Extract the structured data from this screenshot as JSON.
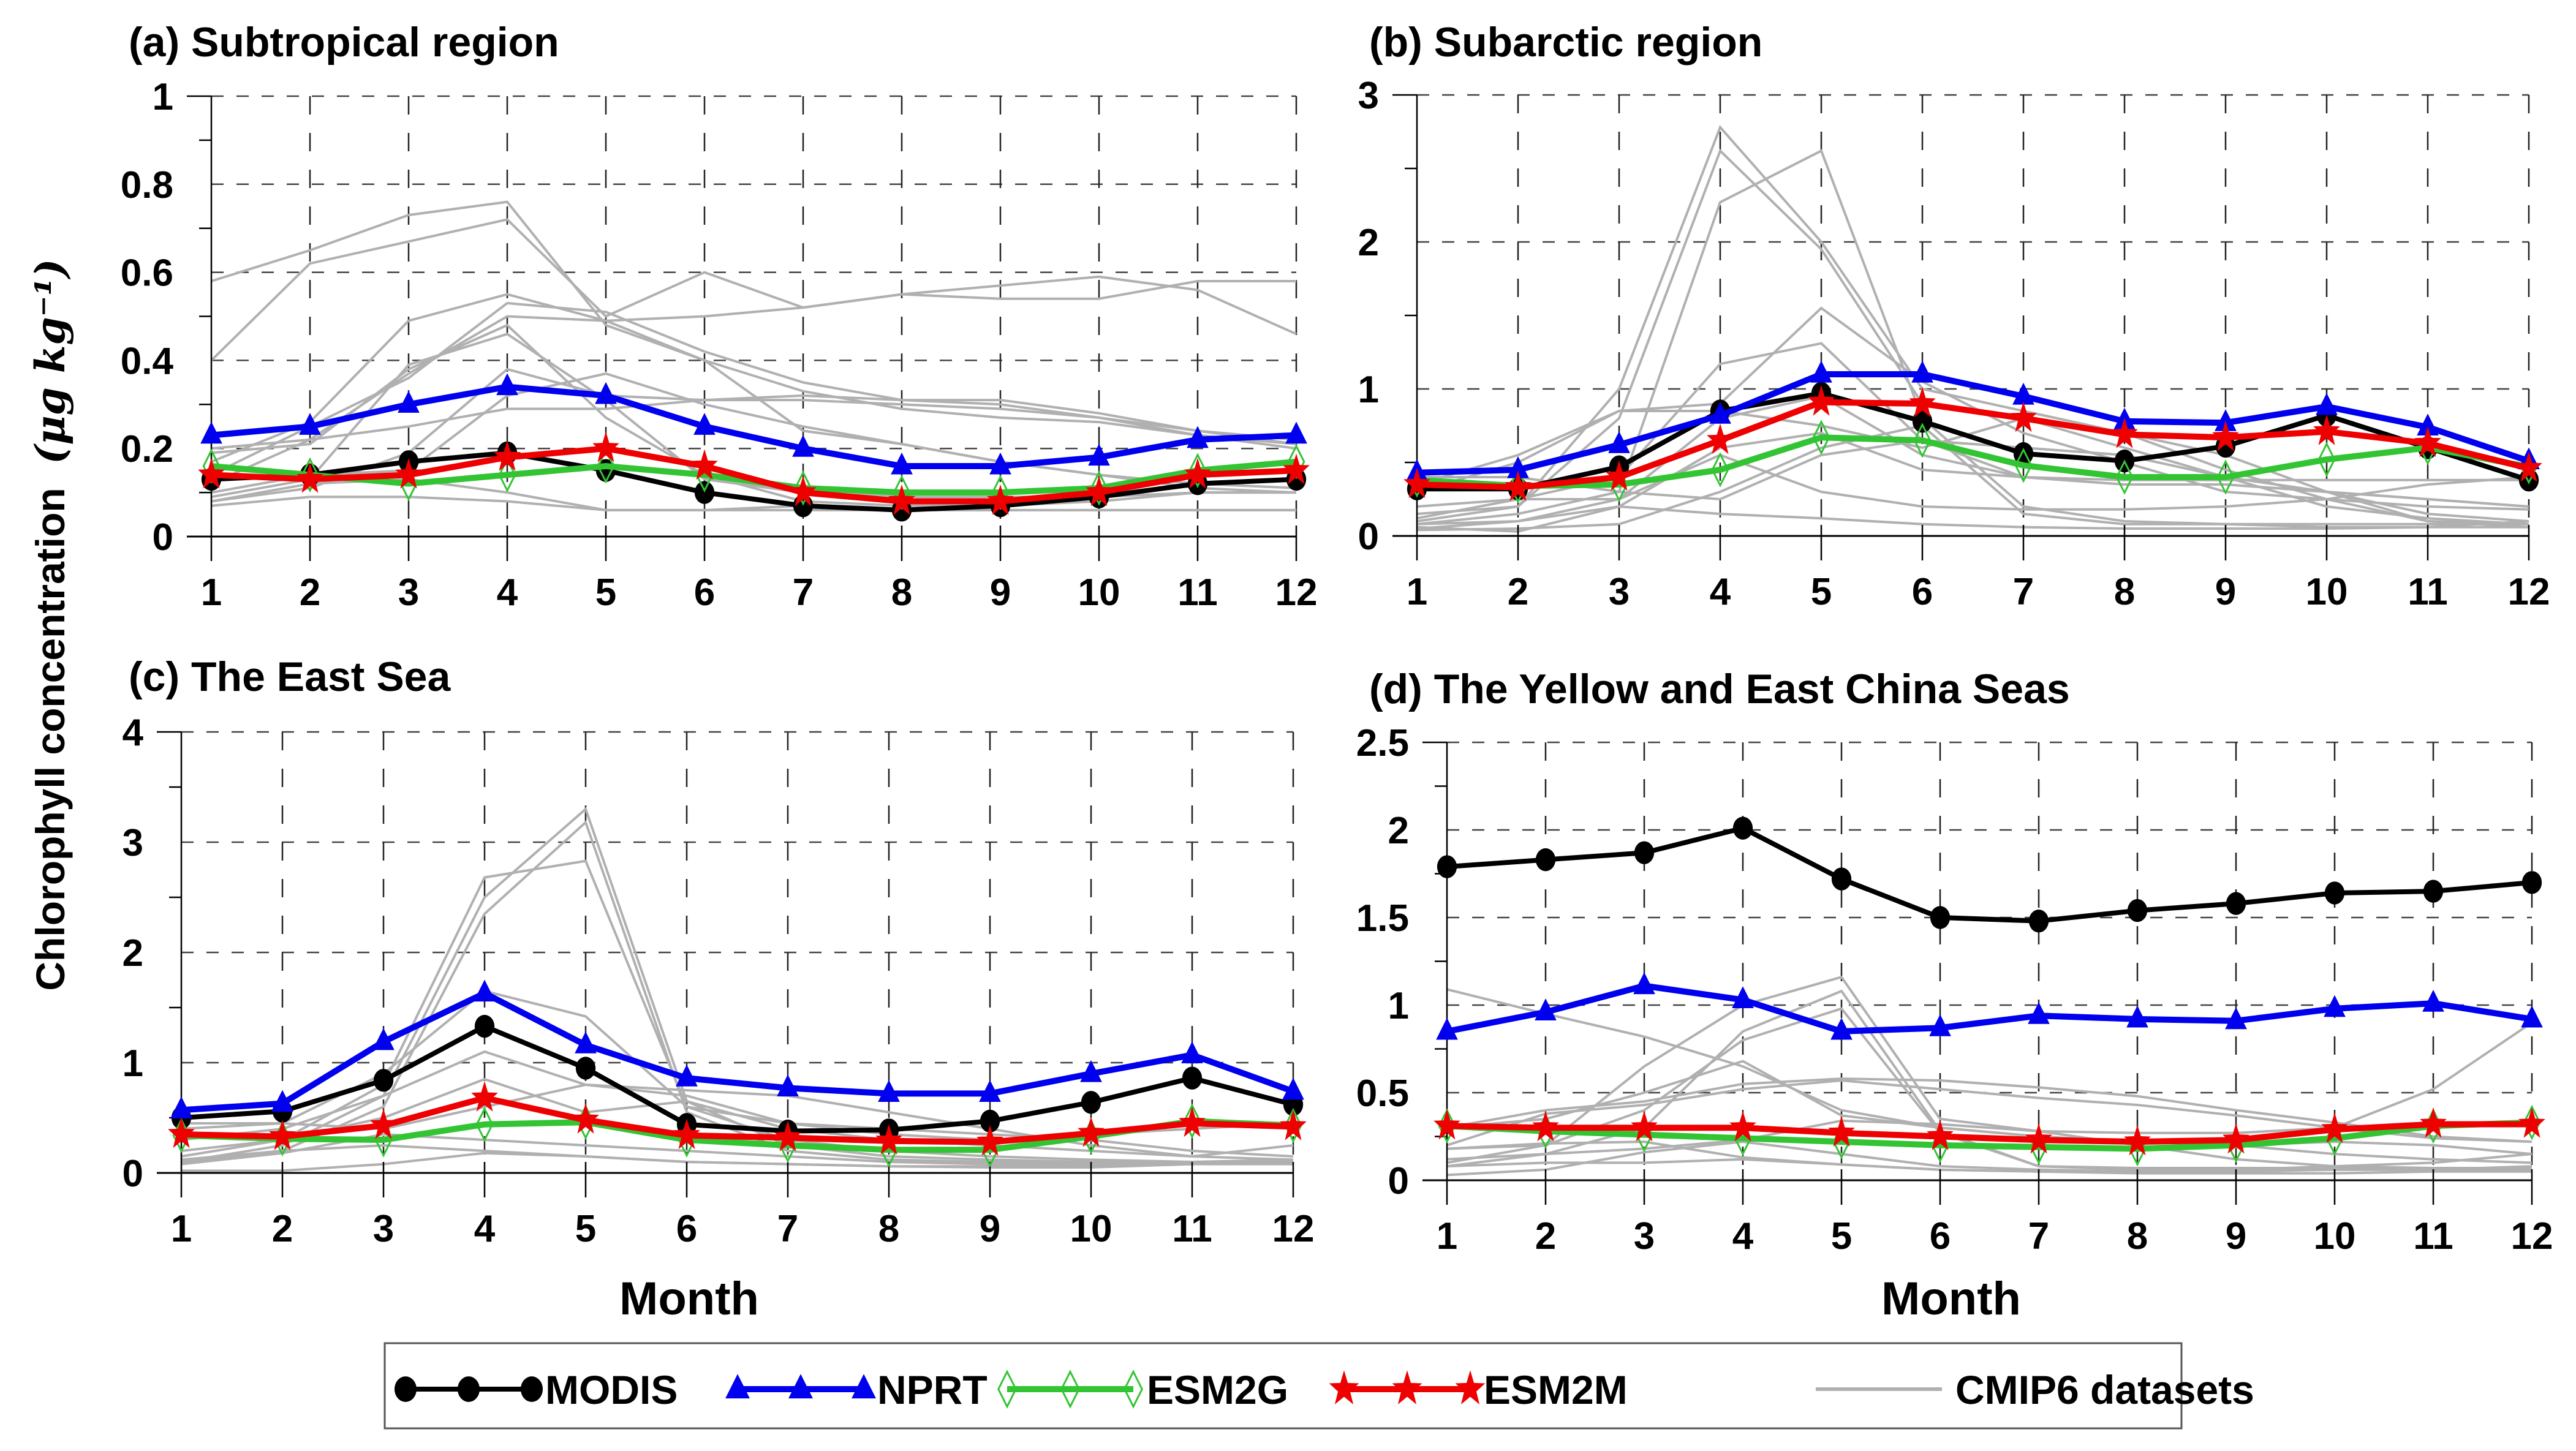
{
  "figure": {
    "ylabel": "Chlorophyll concentration",
    "ylabel_units": "(μg kg⁻¹)",
    "xlabel": "Month"
  },
  "legend": {
    "placement": "bottom-center",
    "items": [
      {
        "name": "MODIS",
        "color": "#000000",
        "marker": "circle"
      },
      {
        "name": "NPRT",
        "color": "#0000ee",
        "marker": "triangle"
      },
      {
        "name": "ESM2G",
        "color": "#33c433",
        "marker": "diamond-open"
      },
      {
        "name": "ESM2M",
        "color": "#ee0000",
        "marker": "star"
      },
      {
        "name": "CMIP6 datasets",
        "color": "#b0b0b0",
        "marker": "none"
      }
    ]
  },
  "chart_data": [
    {
      "type": "line",
      "title": "(a) Subtropical region",
      "xlabel": "",
      "ylabel": "Chlorophyll concentration (μg kg⁻¹)",
      "x": [
        1,
        2,
        3,
        4,
        5,
        6,
        7,
        8,
        9,
        10,
        11,
        12
      ],
      "ylim": [
        0,
        1
      ],
      "yticks": [
        0,
        0.2,
        0.4,
        0.6,
        0.8,
        1
      ],
      "ytick_labels": [
        "0",
        "0.2",
        "0.4",
        "0.6",
        "0.8",
        "1"
      ],
      "grid": true,
      "series": [
        {
          "name": "MODIS",
          "values": [
            0.13,
            0.14,
            0.17,
            0.19,
            0.15,
            0.1,
            0.07,
            0.06,
            0.07,
            0.09,
            0.12,
            0.13
          ]
        },
        {
          "name": "NPRT",
          "values": [
            0.23,
            0.25,
            0.3,
            0.34,
            0.32,
            0.25,
            0.2,
            0.16,
            0.16,
            0.18,
            0.22,
            0.23
          ]
        },
        {
          "name": "ESM2G",
          "values": [
            0.16,
            0.14,
            0.12,
            0.14,
            0.16,
            0.14,
            0.11,
            0.1,
            0.1,
            0.11,
            0.15,
            0.17
          ]
        },
        {
          "name": "ESM2M",
          "values": [
            0.14,
            0.13,
            0.14,
            0.18,
            0.2,
            0.16,
            0.1,
            0.08,
            0.08,
            0.1,
            0.14,
            0.15
          ]
        }
      ],
      "cmip6": [
        [
          0.58,
          0.65,
          0.73,
          0.76,
          0.48,
          0.4,
          0.33,
          0.29,
          0.27,
          0.26,
          0.23,
          0.2
        ],
        [
          0.4,
          0.62,
          0.67,
          0.72,
          0.5,
          0.6,
          0.52,
          0.55,
          0.57,
          0.59,
          0.56,
          0.46
        ],
        [
          0.17,
          0.26,
          0.49,
          0.55,
          0.49,
          0.5,
          0.52,
          0.55,
          0.54,
          0.54,
          0.58,
          0.58
        ],
        [
          0.14,
          0.25,
          0.36,
          0.53,
          0.51,
          0.42,
          0.35,
          0.31,
          0.31,
          0.28,
          0.24,
          0.22
        ],
        [
          0.12,
          0.22,
          0.37,
          0.5,
          0.49,
          0.4,
          0.24,
          0.21,
          0.17,
          0.14,
          0.12,
          0.11
        ],
        [
          0.19,
          0.21,
          0.38,
          0.48,
          0.27,
          0.14,
          0.08,
          0.07,
          0.07,
          0.08,
          0.1,
          0.1
        ],
        [
          0.09,
          0.13,
          0.39,
          0.46,
          0.31,
          0.13,
          0.1,
          0.09,
          0.09,
          0.09,
          0.1,
          0.1
        ],
        [
          0.2,
          0.22,
          0.25,
          0.29,
          0.29,
          0.31,
          0.31,
          0.3,
          0.29,
          0.27,
          0.24,
          0.21
        ],
        [
          0.08,
          0.11,
          0.19,
          0.38,
          0.32,
          0.31,
          0.32,
          0.31,
          0.3,
          0.27,
          0.23,
          0.21
        ],
        [
          0.1,
          0.14,
          0.15,
          0.32,
          0.37,
          0.3,
          0.25,
          0.21,
          0.17,
          0.14,
          0.11,
          0.1
        ],
        [
          0.08,
          0.12,
          0.13,
          0.1,
          0.06,
          0.06,
          0.07,
          0.06,
          0.06,
          0.06,
          0.06,
          0.06
        ],
        [
          0.07,
          0.09,
          0.09,
          0.08,
          0.06,
          0.06,
          0.06,
          0.06,
          0.06,
          0.06,
          0.06,
          0.06
        ]
      ]
    },
    {
      "type": "line",
      "title": "(b) Subarctic region",
      "xlabel": "",
      "ylabel": "",
      "x": [
        1,
        2,
        3,
        4,
        5,
        6,
        7,
        8,
        9,
        10,
        11,
        12
      ],
      "ylim": [
        0,
        3
      ],
      "yticks": [
        0,
        1,
        2,
        3
      ],
      "ytick_labels": [
        "0",
        "1",
        "2",
        "3"
      ],
      "grid": true,
      "series": [
        {
          "name": "MODIS",
          "values": [
            0.32,
            0.32,
            0.47,
            0.85,
            0.97,
            0.78,
            0.56,
            0.51,
            0.61,
            0.82,
            0.6,
            0.38
          ]
        },
        {
          "name": "NPRT",
          "values": [
            0.43,
            0.45,
            0.62,
            0.82,
            1.1,
            1.1,
            0.95,
            0.78,
            0.77,
            0.88,
            0.74,
            0.51
          ]
        },
        {
          "name": "ESM2G",
          "values": [
            0.38,
            0.34,
            0.35,
            0.45,
            0.67,
            0.65,
            0.48,
            0.4,
            0.4,
            0.52,
            0.6,
            0.47
          ]
        },
        {
          "name": "ESM2M",
          "values": [
            0.35,
            0.33,
            0.4,
            0.65,
            0.91,
            0.9,
            0.8,
            0.69,
            0.67,
            0.71,
            0.63,
            0.46
          ]
        }
      ],
      "cmip6": [
        [
          0.1,
          0.2,
          1.0,
          2.78,
          2.0,
          1.0,
          0.85,
          0.7,
          0.45,
          0.25,
          0.1,
          0.08
        ],
        [
          0.15,
          0.2,
          0.8,
          2.62,
          1.95,
          0.9,
          0.8,
          0.6,
          0.4,
          0.2,
          0.12,
          0.08
        ],
        [
          0.08,
          0.15,
          0.3,
          2.27,
          2.62,
          0.8,
          0.2,
          0.1,
          0.08,
          0.06,
          0.06,
          0.06
        ],
        [
          0.3,
          0.5,
          0.85,
          0.9,
          1.55,
          1.05,
          0.7,
          0.5,
          0.3,
          0.25,
          0.2,
          0.18
        ],
        [
          0.2,
          0.25,
          0.4,
          1.17,
          1.31,
          0.65,
          0.6,
          0.55,
          0.4,
          0.3,
          0.25,
          0.2
        ],
        [
          0.35,
          0.55,
          0.85,
          0.85,
          0.75,
          0.6,
          0.8,
          0.7,
          0.55,
          0.3,
          0.15,
          0.1
        ],
        [
          0.4,
          0.4,
          0.3,
          0.25,
          0.55,
          0.65,
          0.4,
          0.38,
          0.38,
          0.38,
          0.38,
          0.38
        ],
        [
          0.05,
          0.1,
          0.2,
          0.6,
          0.7,
          0.45,
          0.4,
          0.35,
          0.35,
          0.3,
          0.25,
          0.2
        ],
        [
          0.12,
          0.25,
          0.25,
          0.55,
          0.3,
          0.2,
          0.18,
          0.18,
          0.2,
          0.25,
          0.35,
          0.4
        ],
        [
          0.04,
          0.05,
          0.08,
          0.3,
          0.6,
          0.75,
          0.15,
          0.08,
          0.08,
          0.08,
          0.08,
          0.08
        ],
        [
          0.06,
          0.03,
          0.2,
          0.15,
          0.12,
          0.08,
          0.06,
          0.05,
          0.05,
          0.05,
          0.06,
          0.1
        ],
        [
          0.08,
          0.1,
          0.25,
          0.8,
          0.95,
          0.55,
          0.4,
          0.35,
          0.35,
          0.3,
          0.1,
          0.06
        ]
      ]
    },
    {
      "type": "line",
      "title": "(c) The East Sea",
      "xlabel": "Month",
      "ylabel": "",
      "x": [
        1,
        2,
        3,
        4,
        5,
        6,
        7,
        8,
        9,
        10,
        11,
        12
      ],
      "ylim": [
        0,
        4
      ],
      "yticks": [
        0,
        1,
        2,
        3,
        4
      ],
      "ytick_labels": [
        "0",
        "1",
        "2",
        "3",
        "4"
      ],
      "grid": true,
      "series": [
        {
          "name": "MODIS",
          "values": [
            0.5,
            0.56,
            0.84,
            1.33,
            0.95,
            0.44,
            0.38,
            0.39,
            0.47,
            0.64,
            0.86,
            0.62
          ]
        },
        {
          "name": "NPRT",
          "values": [
            0.57,
            0.63,
            1.19,
            1.63,
            1.16,
            0.86,
            0.77,
            0.72,
            0.72,
            0.9,
            1.07,
            0.74
          ]
        },
        {
          "name": "ESM2G",
          "values": [
            0.34,
            0.31,
            0.3,
            0.44,
            0.46,
            0.3,
            0.25,
            0.21,
            0.21,
            0.33,
            0.47,
            0.43
          ]
        },
        {
          "name": "ESM2M",
          "values": [
            0.35,
            0.33,
            0.43,
            0.68,
            0.48,
            0.34,
            0.32,
            0.29,
            0.28,
            0.36,
            0.45,
            0.42
          ]
        }
      ],
      "cmip6": [
        [
          0.15,
          0.3,
          0.8,
          2.68,
          2.83,
          0.6,
          0.3,
          0.2,
          0.15,
          0.12,
          0.1,
          0.1
        ],
        [
          0.1,
          0.25,
          0.7,
          2.5,
          3.3,
          0.65,
          0.25,
          0.15,
          0.12,
          0.1,
          0.1,
          0.1
        ],
        [
          0.12,
          0.2,
          0.6,
          2.35,
          3.18,
          0.55,
          0.2,
          0.12,
          0.1,
          0.08,
          0.08,
          0.08
        ],
        [
          0.4,
          0.45,
          0.9,
          1.65,
          1.42,
          0.6,
          0.45,
          0.4,
          0.35,
          0.3,
          0.2,
          0.15
        ],
        [
          0.3,
          0.4,
          0.7,
          1.1,
          0.8,
          0.75,
          0.7,
          0.55,
          0.4,
          0.25,
          0.15,
          0.12
        ],
        [
          0.2,
          0.3,
          0.5,
          0.85,
          0.55,
          0.65,
          0.4,
          0.3,
          0.25,
          0.2,
          0.15,
          0.25
        ],
        [
          0.45,
          0.45,
          0.4,
          0.6,
          0.8,
          0.7,
          0.45,
          0.35,
          0.3,
          0.35,
          0.4,
          0.45
        ],
        [
          0.08,
          0.18,
          0.35,
          0.3,
          0.25,
          0.2,
          0.15,
          0.1,
          0.08,
          0.08,
          0.1,
          0.12
        ],
        [
          0.02,
          0.02,
          0.08,
          0.18,
          0.15,
          0.1,
          0.08,
          0.06,
          0.05,
          0.05,
          0.08,
          0.1
        ],
        [
          0.1,
          0.2,
          0.25,
          0.2,
          0.15,
          0.1,
          0.08,
          0.06,
          0.06,
          0.06,
          0.08,
          0.1
        ]
      ]
    },
    {
      "type": "line",
      "title": "(d) The Yellow and East China Seas",
      "xlabel": "Month",
      "ylabel": "",
      "x": [
        1,
        2,
        3,
        4,
        5,
        6,
        7,
        8,
        9,
        10,
        11,
        12
      ],
      "ylim": [
        0,
        2.5
      ],
      "yticks": [
        0,
        0.5,
        1,
        1.5,
        2,
        2.5
      ],
      "ytick_labels": [
        "0",
        "0.5",
        "1",
        "1.5",
        "2",
        "2.5"
      ],
      "grid": true,
      "series": [
        {
          "name": "MODIS",
          "values": [
            1.79,
            1.83,
            1.87,
            2.01,
            1.72,
            1.5,
            1.48,
            1.54,
            1.58,
            1.64,
            1.65,
            1.7
          ]
        },
        {
          "name": "NPRT",
          "values": [
            0.85,
            0.96,
            1.11,
            1.03,
            0.85,
            0.87,
            0.94,
            0.92,
            0.91,
            0.98,
            1.01,
            0.92
          ]
        },
        {
          "name": "ESM2G",
          "values": [
            0.31,
            0.28,
            0.26,
            0.24,
            0.22,
            0.2,
            0.19,
            0.18,
            0.2,
            0.24,
            0.31,
            0.33
          ]
        },
        {
          "name": "ESM2M",
          "values": [
            0.31,
            0.3,
            0.3,
            0.3,
            0.27,
            0.25,
            0.23,
            0.22,
            0.23,
            0.29,
            0.32,
            0.32
          ]
        }
      ],
      "cmip6": [
        [
          1.09,
          0.95,
          0.82,
          0.65,
          0.4,
          0.3,
          0.25,
          0.22,
          0.2,
          0.15,
          0.12,
          0.1
        ],
        [
          0.3,
          0.4,
          0.45,
          0.55,
          0.58,
          0.57,
          0.53,
          0.48,
          0.4,
          0.33,
          0.25,
          0.22
        ],
        [
          0.2,
          0.38,
          0.43,
          0.52,
          0.57,
          0.52,
          0.47,
          0.43,
          0.37,
          0.3,
          0.24,
          0.22
        ],
        [
          0.1,
          0.2,
          0.65,
          1.0,
          1.16,
          0.35,
          0.28,
          0.27,
          0.27,
          0.3,
          0.52,
          0.9
        ],
        [
          0.12,
          0.15,
          0.3,
          0.85,
          1.08,
          0.28,
          0.08,
          0.07,
          0.07,
          0.07,
          0.07,
          0.07
        ],
        [
          0.18,
          0.2,
          0.4,
          0.8,
          0.98,
          0.27,
          0.08,
          0.06,
          0.06,
          0.06,
          0.06,
          0.06
        ],
        [
          0.3,
          0.35,
          0.5,
          0.68,
          0.37,
          0.3,
          0.25,
          0.22,
          0.2,
          0.22,
          0.2,
          0.15
        ],
        [
          0.08,
          0.15,
          0.18,
          0.23,
          0.34,
          0.32,
          0.28,
          0.2,
          0.12,
          0.08,
          0.1,
          0.15
        ],
        [
          0.03,
          0.06,
          0.16,
          0.22,
          0.15,
          0.08,
          0.06,
          0.05,
          0.05,
          0.06,
          0.06,
          0.08
        ],
        [
          0.08,
          0.1,
          0.1,
          0.12,
          0.09,
          0.06,
          0.05,
          0.04,
          0.04,
          0.04,
          0.05,
          0.05
        ],
        [
          0.18,
          0.21,
          0.22,
          0.13,
          0.09,
          0.06,
          0.05,
          0.05,
          0.06,
          0.08,
          0.07,
          0.05
        ]
      ]
    }
  ]
}
